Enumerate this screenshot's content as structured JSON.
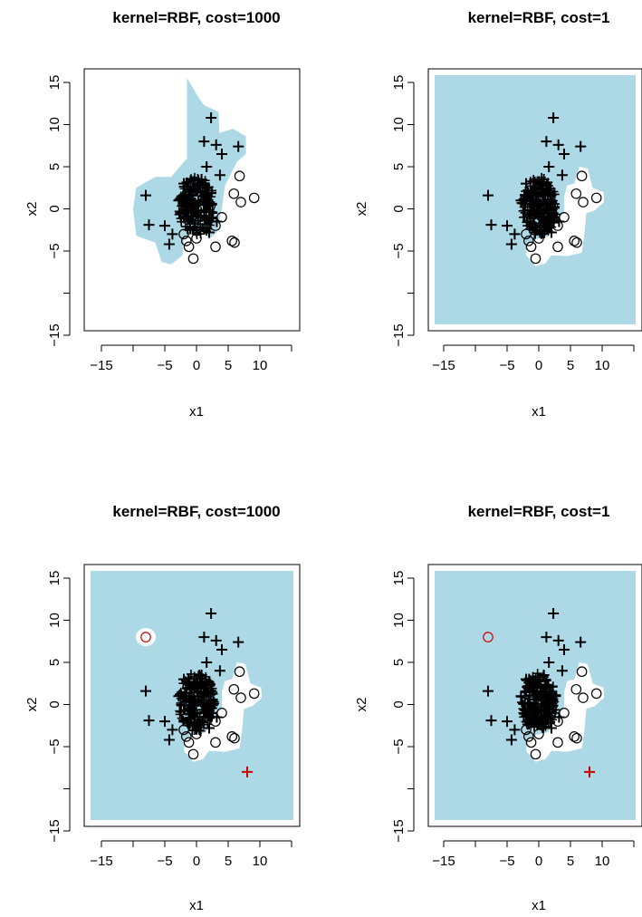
{
  "chart_data": [
    {
      "type": "scatter",
      "title": "kernel=RBF, cost=1000",
      "xlabel": "x1",
      "ylabel": "x2",
      "xlim": [
        -15,
        15
      ],
      "ylim": [
        -15,
        15
      ],
      "xticks": [
        "−15",
        "−5",
        "0",
        "5",
        "10"
      ],
      "yticks": [
        "−15",
        "−5",
        "0",
        "5",
        "10",
        "15"
      ],
      "region_color": "#ADD8E6",
      "region": "plus-class decision region around the plus cluster",
      "series": [
        {
          "marker": "plus",
          "color": "#000000",
          "x": [
            2.3,
            1.2,
            3.1,
            4.0,
            6.6,
            3.7,
            1.6,
            -8.0,
            -7.5,
            -5.0,
            -3.8,
            -4.3,
            -2.0,
            -1.0,
            -2.8,
            0.8,
            2.0,
            3.2
          ],
          "y": [
            10.8,
            8.0,
            7.6,
            6.5,
            7.4,
            4.0,
            5.0,
            1.6,
            -1.9,
            -2.0,
            -3.0,
            -4.2,
            3.0,
            2.0,
            1.0,
            3.5,
            -2.8,
            -1.5
          ]
        },
        {
          "marker": "circle",
          "color": "#000000",
          "x": [
            6.8,
            5.9,
            9.1,
            5.6,
            6.0,
            3.0,
            7.0,
            -0.5,
            -1.2,
            -1.6,
            -2.0,
            3.0,
            2.2,
            4.0,
            0.0
          ],
          "y": [
            3.9,
            1.8,
            1.3,
            -3.8,
            -4.0,
            -4.5,
            0.8,
            -5.9,
            -4.5,
            -3.8,
            -3.0,
            -2.0,
            0.4,
            -1.0,
            -3.5
          ]
        }
      ]
    },
    {
      "type": "scatter",
      "title": "kernel=RBF, cost=1",
      "xlabel": "x1",
      "ylabel": "x2",
      "xlim": [
        -15,
        15
      ],
      "ylim": [
        -15,
        15
      ],
      "xticks": [
        "−15",
        "−5",
        "0",
        "5",
        "10"
      ],
      "yticks": [
        "−15",
        "−5",
        "0",
        "5",
        "10",
        "15"
      ],
      "region_color": "#ADD8E6",
      "region": "plus-class region covers the panel except the circle cluster",
      "series": [
        {
          "marker": "plus",
          "color": "#000000",
          "x": [
            2.3,
            1.2,
            3.1,
            4.0,
            6.6,
            3.7,
            1.6,
            -8.0,
            -7.5,
            -5.0,
            -3.8,
            -4.3,
            -2.0,
            -1.0,
            -2.8,
            0.8,
            2.0,
            3.2
          ],
          "y": [
            10.8,
            8.0,
            7.6,
            6.5,
            7.4,
            4.0,
            5.0,
            1.6,
            -1.9,
            -2.0,
            -3.0,
            -4.2,
            3.0,
            2.0,
            1.0,
            3.5,
            -2.8,
            -1.5
          ]
        },
        {
          "marker": "circle",
          "color": "#000000",
          "x": [
            6.8,
            5.9,
            9.1,
            5.6,
            6.0,
            3.0,
            7.0,
            -0.5,
            -1.2,
            -1.6,
            -2.0,
            3.0,
            2.2,
            4.0,
            0.0
          ],
          "y": [
            3.9,
            1.8,
            1.3,
            -3.8,
            -4.0,
            -4.5,
            0.8,
            -5.9,
            -4.5,
            -3.8,
            -3.0,
            -2.0,
            0.4,
            -1.0,
            -3.5
          ]
        }
      ]
    },
    {
      "type": "scatter",
      "title": "kernel=RBF, cost=1000",
      "xlabel": "x1",
      "ylabel": "x2",
      "xlim": [
        -15,
        15
      ],
      "ylim": [
        -15,
        15
      ],
      "xticks": [
        "−15",
        "−5",
        "0",
        "5",
        "10"
      ],
      "yticks": [
        "−15",
        "−5",
        "0",
        "5",
        "10",
        "15"
      ],
      "region_color": "#ADD8E6",
      "region": "plus-class region covers the panel except the circle cluster and a small patch around the red circle",
      "series": [
        {
          "marker": "plus",
          "color": "#000000",
          "x": [
            2.3,
            1.2,
            3.1,
            4.0,
            6.6,
            3.7,
            1.6,
            -8.0,
            -7.5,
            -5.0,
            -3.8,
            -4.3,
            -2.0,
            -1.0,
            -2.8,
            0.8,
            2.0,
            3.2
          ],
          "y": [
            10.8,
            8.0,
            7.6,
            6.5,
            7.4,
            4.0,
            5.0,
            1.6,
            -1.9,
            -2.0,
            -3.0,
            -4.2,
            3.0,
            2.0,
            1.0,
            3.5,
            -2.8,
            -1.5
          ]
        },
        {
          "marker": "circle",
          "color": "#000000",
          "x": [
            6.8,
            5.9,
            9.1,
            5.6,
            6.0,
            3.0,
            7.0,
            -0.5,
            -1.2,
            -1.6,
            -2.0,
            3.0,
            2.2,
            4.0,
            0.0
          ],
          "y": [
            3.9,
            1.8,
            1.3,
            -3.8,
            -4.0,
            -4.5,
            0.8,
            -5.9,
            -4.5,
            -3.8,
            -3.0,
            -2.0,
            0.4,
            -1.0,
            -3.5
          ]
        },
        {
          "marker": "circle",
          "color": "#CC0000",
          "x": [
            -8.0
          ],
          "y": [
            8.0
          ]
        },
        {
          "marker": "plus",
          "color": "#CC0000",
          "x": [
            8.0
          ],
          "y": [
            -8.0
          ]
        }
      ]
    },
    {
      "type": "scatter",
      "title": "kernel=RBF, cost=1",
      "xlabel": "x1",
      "ylabel": "x2",
      "xlim": [
        -15,
        15
      ],
      "ylim": [
        -15,
        15
      ],
      "xticks": [
        "−15",
        "−5",
        "0",
        "5",
        "10"
      ],
      "yticks": [
        "−15",
        "−5",
        "0",
        "5",
        "10",
        "15"
      ],
      "region_color": "#ADD8E6",
      "region": "plus-class region covers the panel except the circle cluster",
      "series": [
        {
          "marker": "plus",
          "color": "#000000",
          "x": [
            2.3,
            1.2,
            3.1,
            4.0,
            6.6,
            3.7,
            1.6,
            -8.0,
            -7.5,
            -5.0,
            -3.8,
            -4.3,
            -2.0,
            -1.0,
            -2.8,
            0.8,
            2.0,
            3.2
          ],
          "y": [
            10.8,
            8.0,
            7.6,
            6.5,
            7.4,
            4.0,
            5.0,
            1.6,
            -1.9,
            -2.0,
            -3.0,
            -4.2,
            3.0,
            2.0,
            1.0,
            3.5,
            -2.8,
            -1.5
          ]
        },
        {
          "marker": "circle",
          "color": "#000000",
          "x": [
            6.8,
            5.9,
            9.1,
            5.6,
            6.0,
            3.0,
            7.0,
            -0.5,
            -1.2,
            -1.6,
            -2.0,
            3.0,
            2.2,
            4.0,
            0.0
          ],
          "y": [
            3.9,
            1.8,
            1.3,
            -3.8,
            -4.0,
            -4.5,
            0.8,
            -5.9,
            -4.5,
            -3.8,
            -3.0,
            -2.0,
            0.4,
            -1.0,
            -3.5
          ]
        },
        {
          "marker": "circle",
          "color": "#CC0000",
          "x": [
            -8.0
          ],
          "y": [
            8.0
          ]
        },
        {
          "marker": "plus",
          "color": "#CC0000",
          "x": [
            8.0
          ],
          "y": [
            -8.0
          ]
        }
      ]
    }
  ]
}
